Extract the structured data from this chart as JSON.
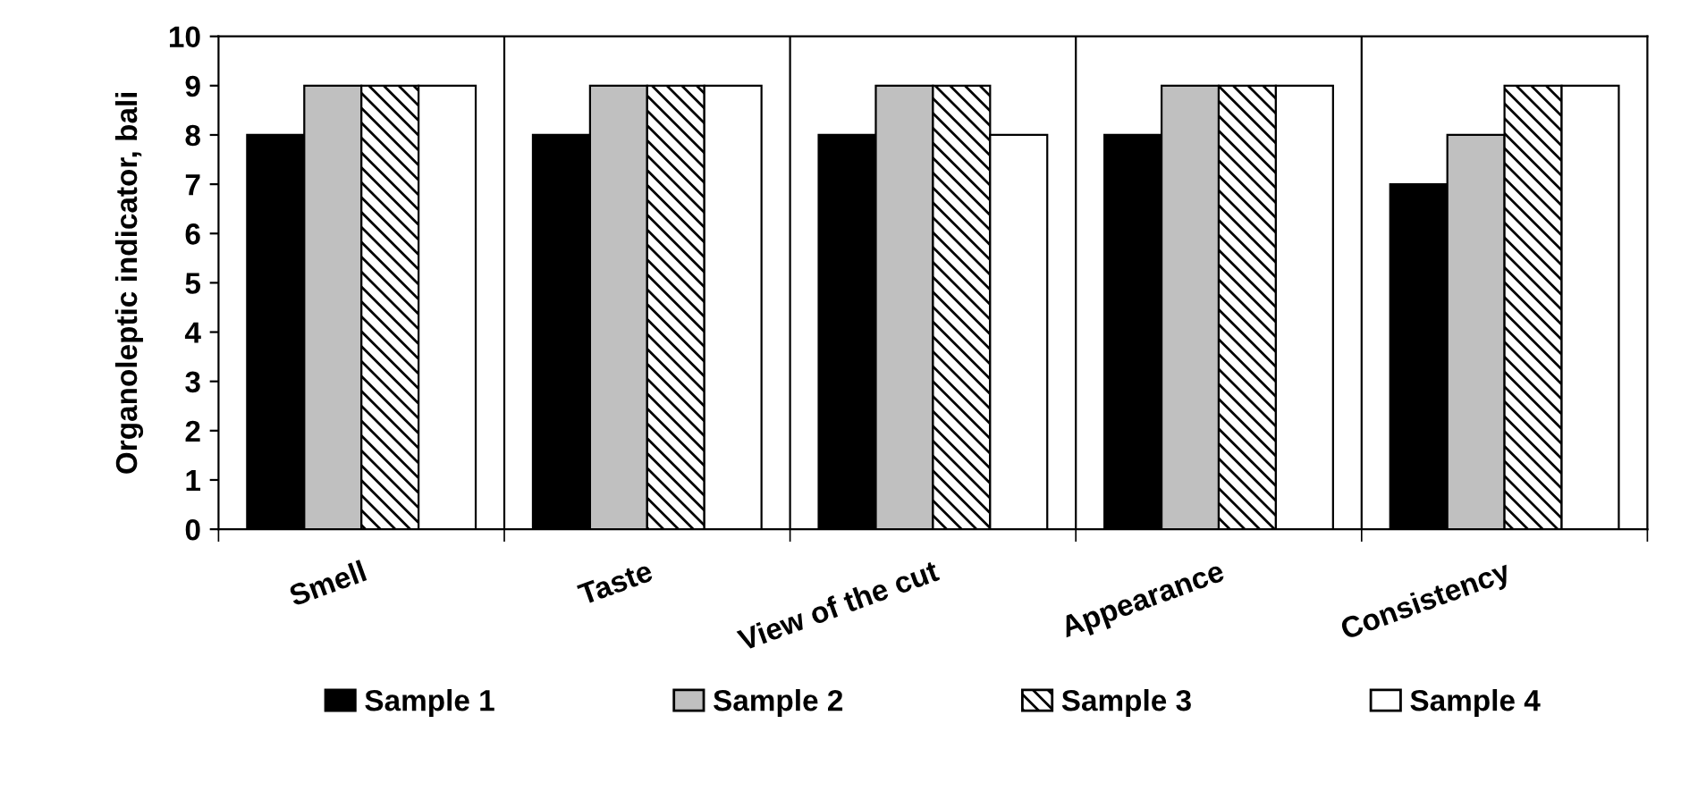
{
  "chart_data": {
    "type": "bar",
    "ylabel": "Organoleptic indicator, bali",
    "categories": [
      "Smell",
      "Taste",
      "View of the cut",
      "Appearance",
      "Consistency"
    ],
    "series": [
      {
        "name": "Sample 1",
        "color": "#000000",
        "values": [
          8,
          8,
          8,
          8,
          7
        ]
      },
      {
        "name": "Sample 2",
        "color": "#c0c0c0",
        "values": [
          9,
          9,
          9,
          9,
          8
        ]
      },
      {
        "name": "Sample 3",
        "color": "#000000",
        "values": [
          9,
          9,
          9,
          9,
          9
        ]
      },
      {
        "name": "Sample 4",
        "color": "#ffffff",
        "values": [
          9,
          9,
          8,
          9,
          9
        ]
      }
    ],
    "ylim": [
      0,
      10
    ],
    "yticks": [
      0,
      1,
      2,
      3,
      4,
      5,
      6,
      7,
      8,
      9,
      10
    ],
    "grid": "x",
    "legend": "bottom"
  }
}
